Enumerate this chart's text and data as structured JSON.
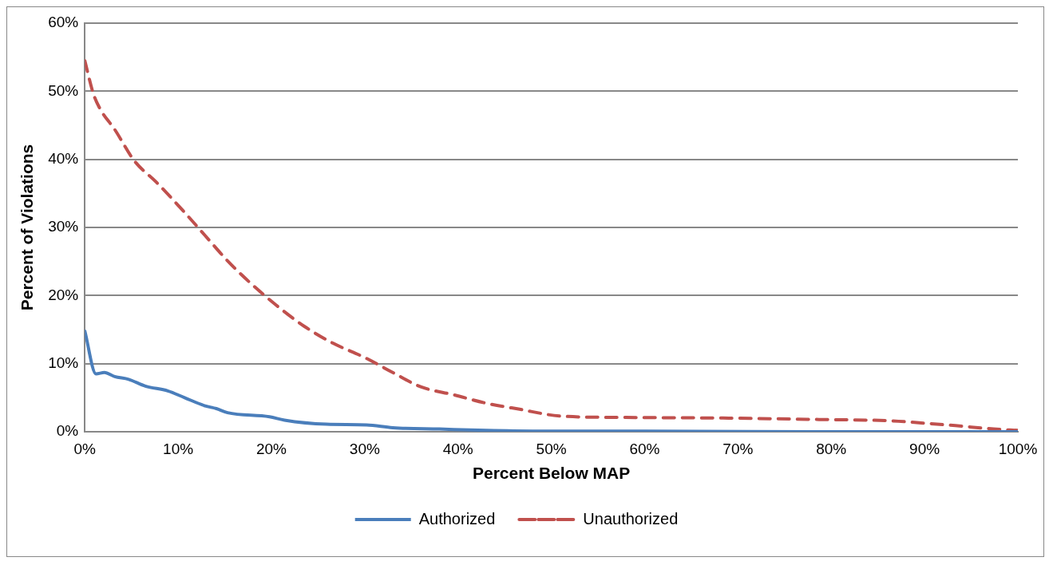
{
  "chart_data": {
    "type": "line",
    "xlabel": "Percent Below MAP",
    "ylabel": "Percent of Violations",
    "xlim": [
      0,
      100
    ],
    "xticks": [
      {
        "value": 0,
        "label": "0%"
      },
      {
        "value": 10,
        "label": "10%"
      },
      {
        "value": 20,
        "label": "20%"
      },
      {
        "value": 30,
        "label": "30%"
      },
      {
        "value": 40,
        "label": "40%"
      },
      {
        "value": 50,
        "label": "50%"
      },
      {
        "value": 60,
        "label": "60%"
      },
      {
        "value": 70,
        "label": "70%"
      },
      {
        "value": 80,
        "label": "80%"
      },
      {
        "value": 90,
        "label": "90%"
      },
      {
        "value": 100,
        "label": "100%"
      }
    ],
    "ylim": [
      0,
      60
    ],
    "yticks": [
      {
        "value": 0,
        "label": "0%"
      },
      {
        "value": 10,
        "label": "10%"
      },
      {
        "value": 20,
        "label": "20%"
      },
      {
        "value": 30,
        "label": "30%"
      },
      {
        "value": 40,
        "label": "40%"
      },
      {
        "value": 50,
        "label": "50%"
      },
      {
        "value": 60,
        "label": "60%"
      }
    ],
    "grid": "y",
    "legend": "bottom",
    "marker": "none",
    "series": [
      {
        "name": "Authorized",
        "color": "#4a7ebb",
        "line_style": "solid",
        "x": [
          0,
          1.2,
          2.1,
          3.2,
          4.7,
          6.5,
          8.9,
          10.7,
          12.9,
          14.1,
          15.3,
          19.8,
          21.4,
          25.9,
          30.2,
          33,
          38,
          43,
          48,
          60,
          80,
          100
        ],
        "values": [
          14.8,
          8.5,
          8.7,
          8.1,
          7.7,
          6.7,
          6.0,
          5.0,
          3.8,
          3.4,
          2.8,
          2.2,
          1.7,
          1.1,
          1.0,
          0.6,
          0.4,
          0.2,
          0.1,
          0.1,
          0,
          0
        ]
      },
      {
        "name": "Unauthorized",
        "color": "#c0504d",
        "line_style": "dashed",
        "x": [
          0,
          0.9,
          1.6,
          3.2,
          5.3,
          7.7,
          10.5,
          12.9,
          15.3,
          17.7,
          20.5,
          23.5,
          26.6,
          30,
          33,
          36,
          39.6,
          43,
          46.6,
          51,
          58,
          69,
          78.7,
          86.4,
          90.5,
          93.3,
          97.4,
          100
        ],
        "values": [
          54.5,
          49.7,
          47.5,
          44.4,
          39.8,
          36.6,
          32.5,
          28.8,
          25.1,
          21.9,
          18.6,
          15.5,
          13.0,
          10.9,
          8.7,
          6.6,
          5.4,
          4.2,
          3.3,
          2.3,
          2.1,
          2.0,
          1.8,
          1.6,
          1.2,
          0.9,
          0.4,
          0.2
        ]
      }
    ]
  }
}
